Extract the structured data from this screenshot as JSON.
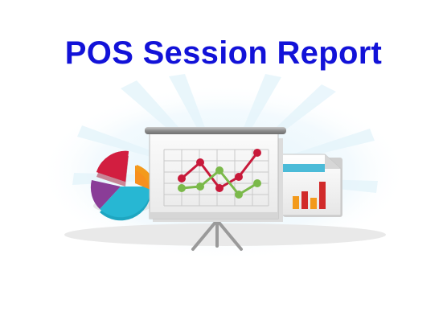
{
  "title": "POS Session Report",
  "colors": {
    "title": "#1212d8",
    "pie_red": "#c8193a",
    "pie_purple": "#8a3d97",
    "pie_orange": "#f7901e",
    "pie_teal": "#20b0cc",
    "line_red": "#c8193a",
    "line_green": "#7bb94a",
    "bar_orange": "#f39a1c",
    "bar_red": "#d12a2a",
    "screen_frame": "#9a9a9a"
  },
  "icons": {
    "pie": "pie-chart-icon",
    "board": "presentation-board-icon",
    "document": "document-bar-chart-icon"
  }
}
